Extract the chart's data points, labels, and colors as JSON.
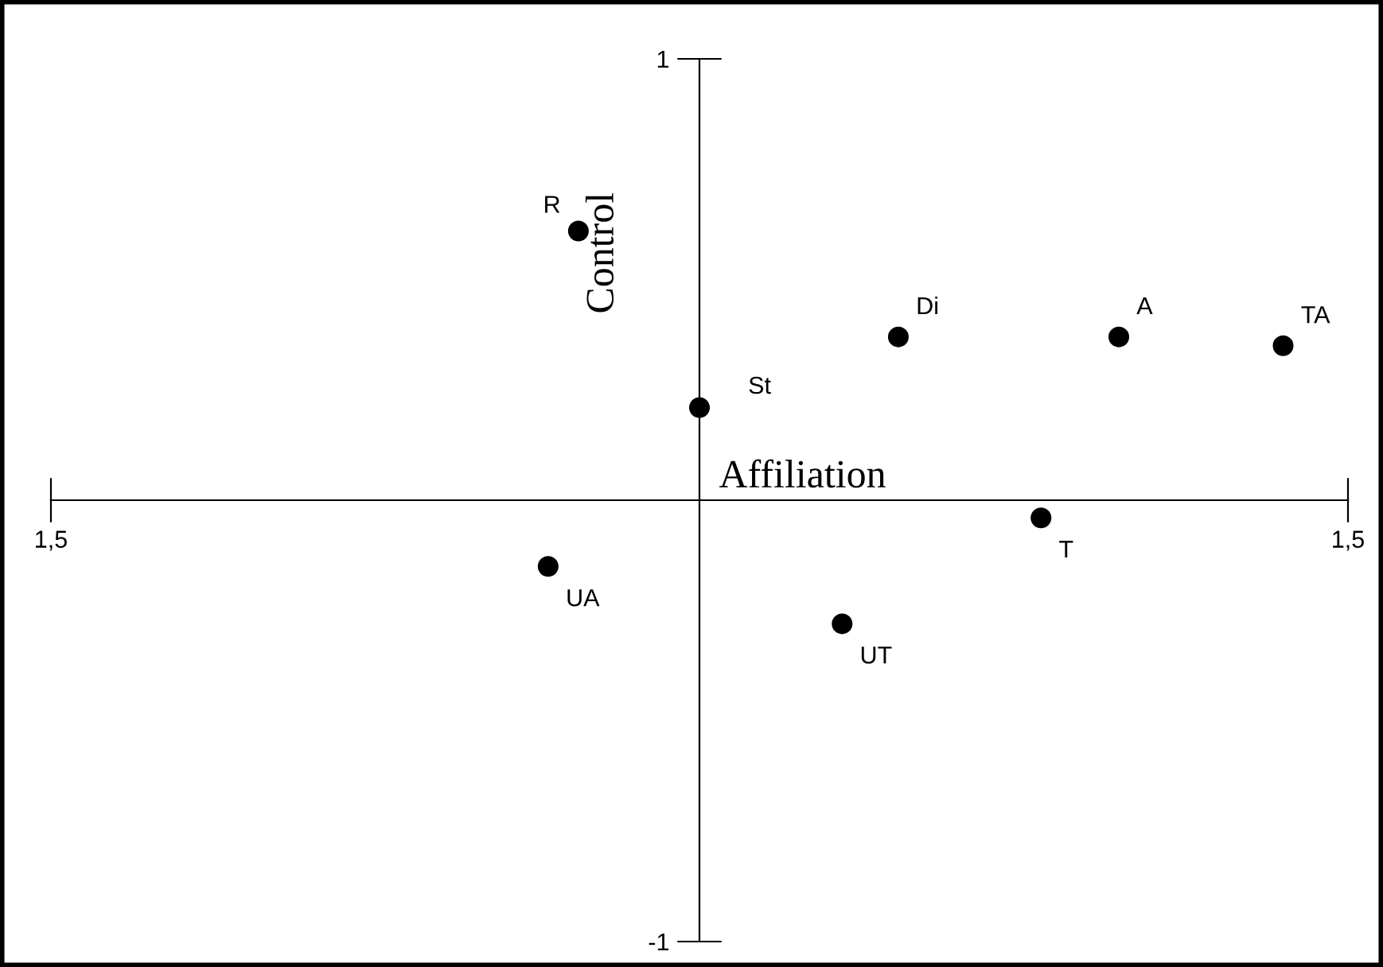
{
  "chart_data": {
    "type": "scatter",
    "xlabel": "Affiliation",
    "ylabel": "Control",
    "x": [
      -0.28,
      0.46,
      0.97,
      1.35,
      0.0,
      0.79,
      -0.35,
      0.33
    ],
    "values": [
      0.61,
      0.37,
      0.37,
      0.35,
      0.21,
      -0.04,
      -0.15,
      -0.28
    ],
    "color": "#000000",
    "marker": "circle",
    "grid": false,
    "legend": false,
    "xlim": [
      -1.5,
      1.5
    ],
    "ylim": [
      -1,
      1
    ],
    "xticks": [
      {
        "value": -1.5,
        "label": "1,5"
      },
      {
        "value": 1.5,
        "label": "1,5"
      }
    ],
    "yticks": [
      {
        "value": -1,
        "label": "-1"
      },
      {
        "value": 1,
        "label": "1"
      }
    ],
    "annotations": [
      {
        "text": "R",
        "x": -0.28,
        "y": 0.61
      },
      {
        "text": "Di",
        "x": 0.46,
        "y": 0.37
      },
      {
        "text": "A",
        "x": 0.97,
        "y": 0.37
      },
      {
        "text": "TA",
        "x": 1.35,
        "y": 0.35
      },
      {
        "text": "St",
        "x": 0.0,
        "y": 0.21
      },
      {
        "text": "T",
        "x": 0.79,
        "y": -0.04
      },
      {
        "text": "UA",
        "x": -0.35,
        "y": -0.15
      },
      {
        "text": "UT",
        "x": 0.33,
        "y": -0.28
      }
    ]
  }
}
